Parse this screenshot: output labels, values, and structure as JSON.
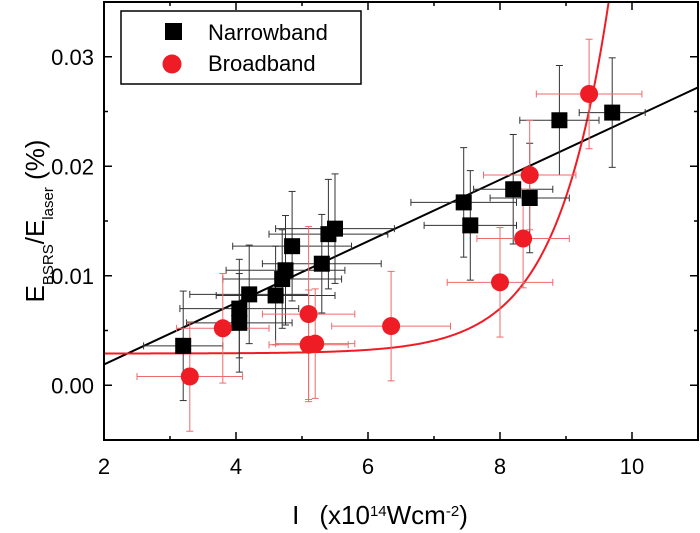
{
  "chart_data": {
    "type": "scatter",
    "xlabel": {
      "main": "I",
      "prefix": "(x10",
      "sup1": "14",
      "mid": "Wcm",
      "sup2": "-2",
      "suffix": ")"
    },
    "ylabel": {
      "main": "E",
      "sub1": "BSRS",
      "slash": "/E",
      "sub2": "laser",
      "suffix": " (%)"
    },
    "xlim": [
      2,
      11
    ],
    "ylim": [
      -0.005,
      0.035
    ],
    "x_ticks": [
      2,
      4,
      6,
      8,
      10
    ],
    "y_ticks": [
      0.0,
      0.01,
      0.02,
      0.03
    ],
    "x_tick_labels": [
      "2",
      "4",
      "6",
      "8",
      "10"
    ],
    "y_tick_labels": [
      "0.00",
      "0.01",
      "0.02",
      "0.03"
    ],
    "legend_position": "top-left",
    "series": [
      {
        "name": "Narrowband",
        "marker": "square",
        "color": "#000000",
        "points": [
          {
            "x": 3.2,
            "y": 0.0036,
            "xerr": 0.6,
            "yerr": 0.005
          },
          {
            "x": 4.05,
            "y": 0.0057,
            "xerr": 0.8,
            "yerr": 0.0045
          },
          {
            "x": 4.05,
            "y": 0.007,
            "xerr": 0.9,
            "yerr": 0.0045
          },
          {
            "x": 4.2,
            "y": 0.0083,
            "xerr": 0.9,
            "yerr": 0.0045
          },
          {
            "x": 4.6,
            "y": 0.0082,
            "xerr": 0.9,
            "yerr": 0.0045
          },
          {
            "x": 4.7,
            "y": 0.0097,
            "xerr": 0.9,
            "yerr": 0.0045
          },
          {
            "x": 4.75,
            "y": 0.0105,
            "xerr": 0.9,
            "yerr": 0.005
          },
          {
            "x": 4.85,
            "y": 0.0127,
            "xerr": 0.9,
            "yerr": 0.005
          },
          {
            "x": 5.3,
            "y": 0.0111,
            "xerr": 0.9,
            "yerr": 0.0045
          },
          {
            "x": 5.4,
            "y": 0.0138,
            "xerr": 0.9,
            "yerr": 0.005
          },
          {
            "x": 5.5,
            "y": 0.0143,
            "xerr": 0.9,
            "yerr": 0.005
          },
          {
            "x": 7.45,
            "y": 0.0167,
            "xerr": 0.8,
            "yerr": 0.005
          },
          {
            "x": 7.55,
            "y": 0.0146,
            "xerr": 0.7,
            "yerr": 0.005
          },
          {
            "x": 8.2,
            "y": 0.0179,
            "xerr": 0.6,
            "yerr": 0.005
          },
          {
            "x": 8.45,
            "y": 0.0171,
            "xerr": 0.6,
            "yerr": 0.005
          },
          {
            "x": 8.9,
            "y": 0.0242,
            "xerr": 0.6,
            "yerr": 0.005
          },
          {
            "x": 9.7,
            "y": 0.0249,
            "xerr": 0.5,
            "yerr": 0.005
          }
        ],
        "fit": {
          "type": "linear",
          "x_range": [
            2,
            11
          ],
          "y_at_start": 0.0019,
          "y_at_end": 0.0272,
          "color": "#000000"
        }
      },
      {
        "name": "Broadband",
        "marker": "circle",
        "color": "#ee1c25",
        "points": [
          {
            "x": 3.3,
            "y": 0.0008,
            "xerr": 0.8,
            "yerr": 0.005
          },
          {
            "x": 3.8,
            "y": 0.0052,
            "xerr": 0.7,
            "yerr": 0.005
          },
          {
            "x": 5.1,
            "y": 0.0065,
            "xerr": 0.7,
            "yerr": 0.008
          },
          {
            "x": 5.1,
            "y": 0.0037,
            "xerr": 0.6,
            "yerr": 0.005
          },
          {
            "x": 5.2,
            "y": 0.0038,
            "xerr": 0.6,
            "yerr": 0.005
          },
          {
            "x": 6.35,
            "y": 0.0054,
            "xerr": 0.9,
            "yerr": 0.005
          },
          {
            "x": 8.0,
            "y": 0.0094,
            "xerr": 0.8,
            "yerr": 0.005
          },
          {
            "x": 8.35,
            "y": 0.0134,
            "xerr": 0.7,
            "yerr": 0.0045
          },
          {
            "x": 8.45,
            "y": 0.0192,
            "xerr": 0.7,
            "yerr": 0.005
          },
          {
            "x": 9.35,
            "y": 0.0266,
            "xerr": 0.8,
            "yerr": 0.005
          }
        ],
        "fit": {
          "type": "exponential",
          "x_range": [
            2,
            11
          ],
          "form": "y = a + b*exp((x - x0)/t)",
          "a": 0.0029,
          "b": 0.0041,
          "x0": 8.0,
          "t": 0.8,
          "color": "#ee1c25"
        }
      }
    ]
  }
}
